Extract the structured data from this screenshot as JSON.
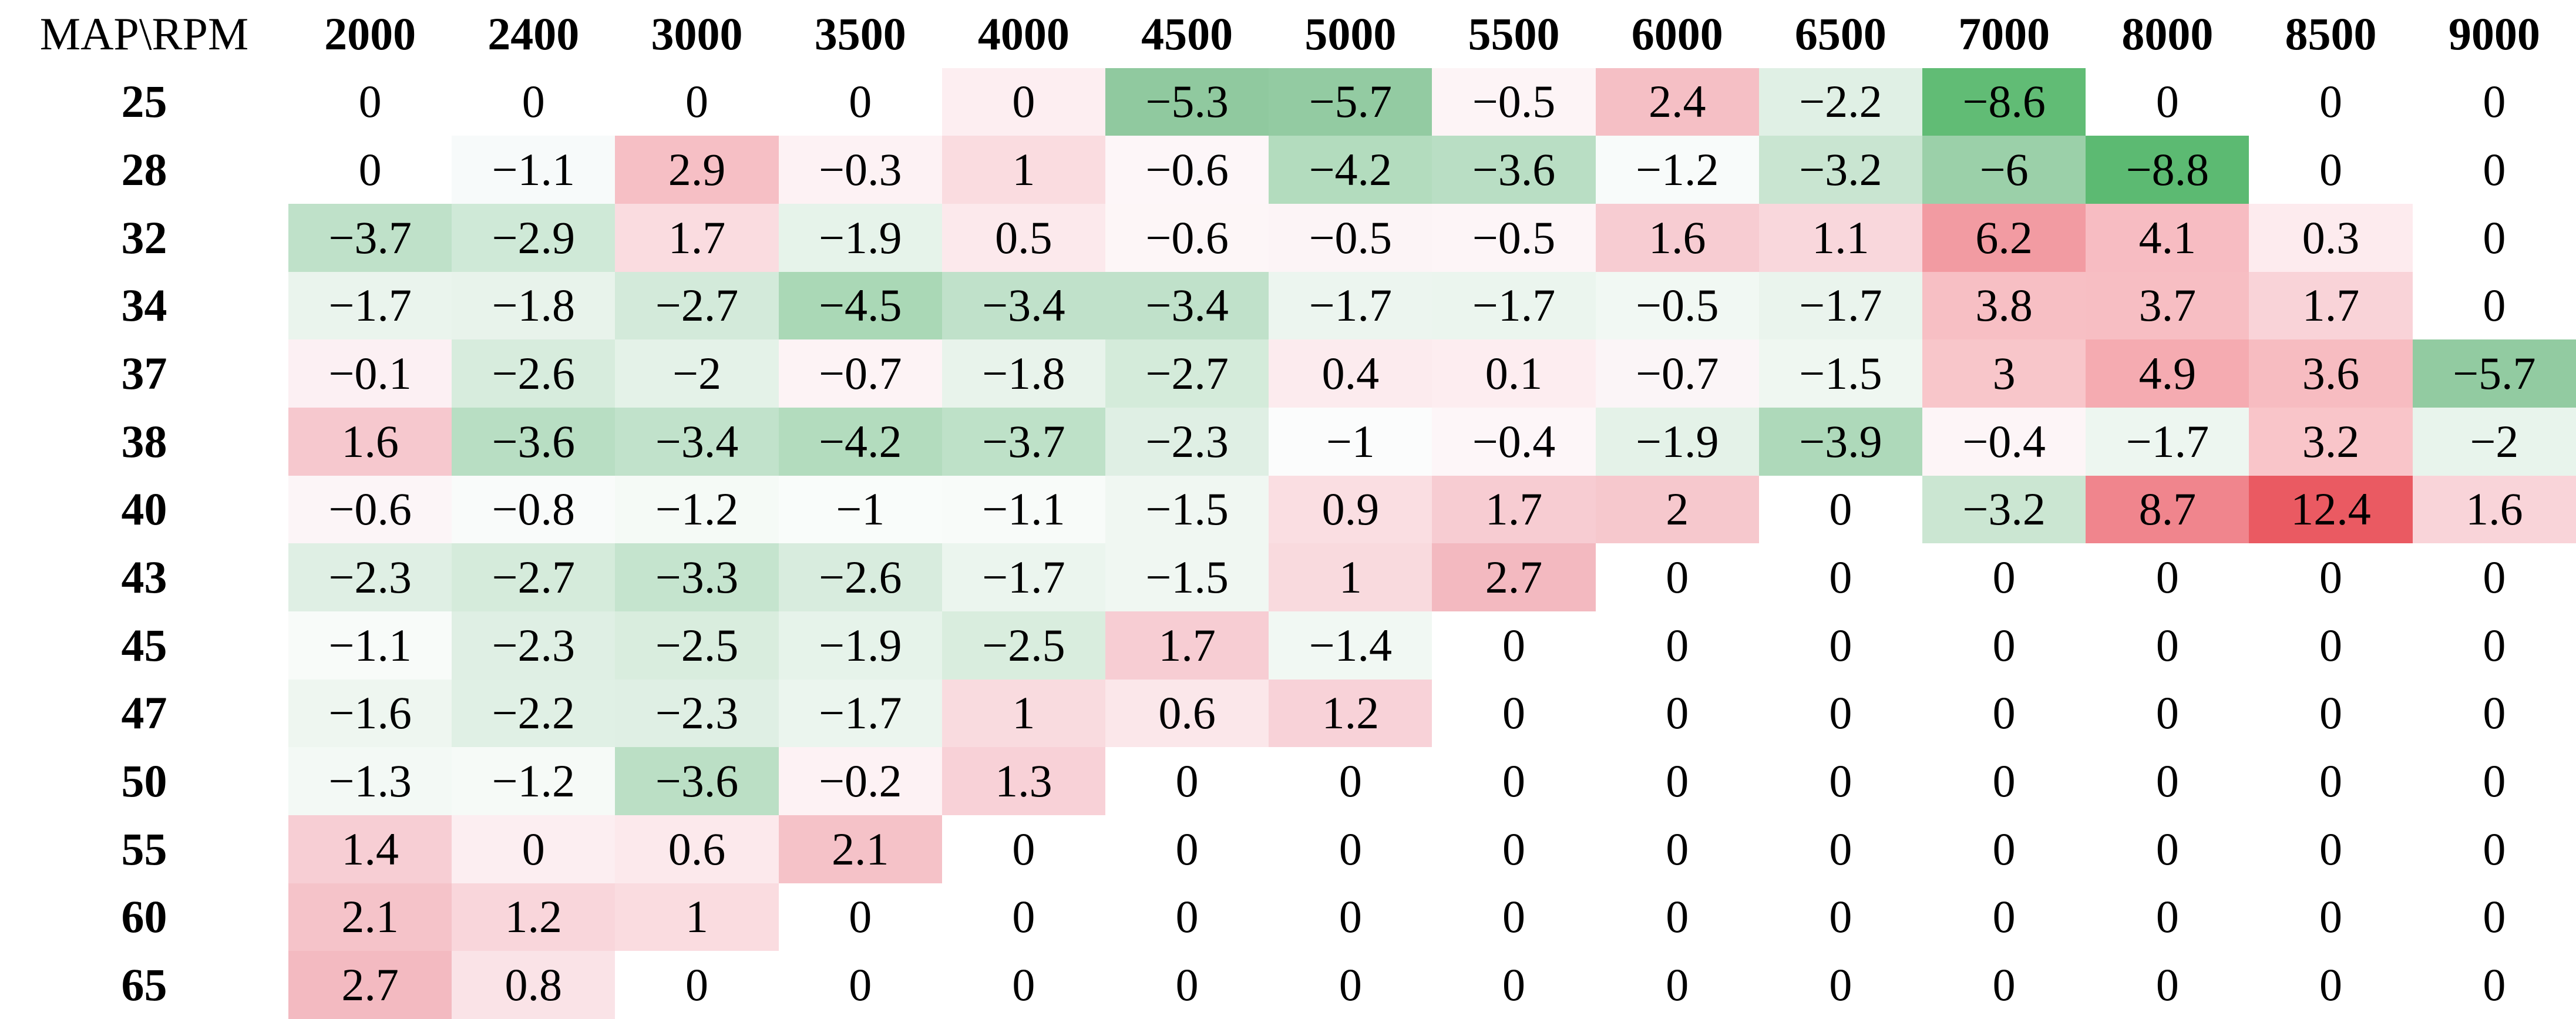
{
  "chart_data": {
    "type": "heatmap",
    "title": "",
    "corner_label": "MAP\\RPM",
    "x_axis_name": "RPM",
    "y_axis_name": "MAP",
    "columns": [
      2000,
      2400,
      3000,
      3500,
      4000,
      4500,
      5000,
      5500,
      6000,
      6500,
      7000,
      8000,
      8500,
      9000
    ],
    "rows": [
      25,
      28,
      32,
      34,
      37,
      38,
      40,
      43,
      45,
      47,
      50,
      55,
      60,
      65
    ],
    "values": [
      [
        0,
        0,
        0,
        0,
        0,
        -5.3,
        -5.7,
        -0.5,
        2.4,
        -2.2,
        -8.6,
        0,
        0,
        0
      ],
      [
        0,
        -1.1,
        2.9,
        -0.3,
        1,
        -0.6,
        -4.2,
        -3.6,
        -1.2,
        -3.2,
        -6,
        -8.8,
        0,
        0
      ],
      [
        -3.7,
        -2.9,
        1.7,
        -1.9,
        0.5,
        -0.6,
        -0.5,
        -0.5,
        1.6,
        1.1,
        6.2,
        4.1,
        0.3,
        0
      ],
      [
        -1.7,
        -1.8,
        -2.7,
        -4.5,
        -3.4,
        -3.4,
        -1.7,
        -1.7,
        -0.5,
        -1.7,
        3.8,
        3.7,
        1.7,
        0
      ],
      [
        -0.1,
        -2.6,
        -2,
        -0.7,
        -1.8,
        -2.7,
        0.4,
        0.1,
        -0.7,
        -1.5,
        3,
        4.9,
        3.6,
        -5.7
      ],
      [
        1.6,
        -3.6,
        -3.4,
        -4.2,
        -3.7,
        -2.3,
        -1,
        -0.4,
        -1.9,
        -3.9,
        -0.4,
        -1.7,
        3.2,
        -2
      ],
      [
        -0.6,
        -0.8,
        -1.2,
        -1,
        -1.1,
        -1.5,
        0.9,
        1.7,
        2,
        0,
        -3.2,
        8.7,
        12.4,
        1.6
      ],
      [
        -2.3,
        -2.7,
        -3.3,
        -2.6,
        -1.7,
        -1.5,
        1,
        2.7,
        0,
        0,
        0,
        0,
        0,
        0
      ],
      [
        -1.1,
        -2.3,
        -2.5,
        -1.9,
        -2.5,
        1.7,
        -1.4,
        0,
        0,
        0,
        0,
        0,
        0,
        0
      ],
      [
        -1.6,
        -2.2,
        -2.3,
        -1.7,
        1,
        0.6,
        1.2,
        0,
        0,
        0,
        0,
        0,
        0,
        0
      ],
      [
        -1.3,
        -1.2,
        -3.6,
        -0.2,
        1.3,
        0,
        0,
        0,
        0,
        0,
        0,
        0,
        0,
        0
      ],
      [
        1.4,
        0,
        0.6,
        2.1,
        0,
        0,
        0,
        0,
        0,
        0,
        0,
        0,
        0,
        0
      ],
      [
        2.1,
        1.2,
        1,
        0,
        0,
        0,
        0,
        0,
        0,
        0,
        0,
        0,
        0,
        0
      ],
      [
        2.7,
        0.8,
        0,
        0,
        0,
        0,
        0,
        0,
        0,
        0,
        0,
        0,
        0,
        0
      ]
    ],
    "cell_colors": [
      [
        "#ffffff",
        "#ffffff",
        "#ffffff",
        "#ffffff",
        "#fdeef1",
        "#90c99f",
        "#93cba2",
        "#fdf4f6",
        "#f5bfc5",
        "#e0f0e5",
        "#61bc75",
        "#ffffff",
        "#ffffff",
        "#ffffff"
      ],
      [
        "#ffffff",
        "#f7fafa",
        "#f6bfc5",
        "#fdf2f4",
        "#fadce0",
        "#fdf6f8",
        "#b3dcbe",
        "#b9dec4",
        "#f8fbfa",
        "#c9e5d1",
        "#9bd0a9",
        "#5cba72",
        "#ffffff",
        "#ffffff"
      ],
      [
        "#bfe1c9",
        "#cfe9d7",
        "#fadce0",
        "#e6f3ea",
        "#fce9ec",
        "#fdf6f7",
        "#fcf4f6",
        "#fdf5f7",
        "#f7ccd2",
        "#f9d7dc",
        "#f29ba2",
        "#f7bcc2",
        "#fdebee",
        "#ffffff"
      ],
      [
        "#eaf4ed",
        "#e8f3eb",
        "#d3eada",
        "#aad8b6",
        "#c0e1ca",
        "#c0e1ca",
        "#ecf5ef",
        "#ebf5ee",
        "#f1f8f3",
        "#eaf4ed",
        "#f7bfc4",
        "#f7bec3",
        "#f9d3d8",
        "#ffffff"
      ],
      [
        "#fcf0f3",
        "#d7ecdd",
        "#e4f2e8",
        "#fdf3f5",
        "#e8f3eb",
        "#d4ebda",
        "#fcebee",
        "#fdedf0",
        "#fbf5f7",
        "#eff7f1",
        "#f8c6ca",
        "#f5abb1",
        "#f7bcc1",
        "#92cba1"
      ],
      [
        "#f6c8ce",
        "#b8dec3",
        "#c1e2cb",
        "#b3dcbe",
        "#bee1c8",
        "#dfefe4",
        "#fbfcfc",
        "#fdf6f8",
        "#e4f2e8",
        "#aed9ba",
        "#fdf5f7",
        "#edf6f0",
        "#f9c5c9",
        "#e8f4ec"
      ],
      [
        "#fcf5f7",
        "#f9fbfa",
        "#f5faf6",
        "#f9fcfa",
        "#f8fbf9",
        "#f0f7f2",
        "#fadee2",
        "#f7ccd2",
        "#f6c8cd",
        "#ffffff",
        "#cbe6d2",
        "#f0858d",
        "#ea5a62",
        "#f9d4d9"
      ],
      [
        "#dfefe4",
        "#d5ebdb",
        "#c5e4ce",
        "#d8ecde",
        "#ebf5ee",
        "#f0f7f2",
        "#f9dade",
        "#f3b9c0",
        "#ffffff",
        "#ffffff",
        "#ffffff",
        "#ffffff",
        "#ffffff",
        "#ffffff"
      ],
      [
        "#f8fbf9",
        "#dfefe4",
        "#d9edde",
        "#e6f3ea",
        "#d9edde",
        "#f7cdd3",
        "#f1f8f3",
        "#ffffff",
        "#ffffff",
        "#ffffff",
        "#ffffff",
        "#ffffff",
        "#ffffff",
        "#ffffff"
      ],
      [
        "#eef6f0",
        "#e0f0e5",
        "#dfefe4",
        "#ebf5ee",
        "#f9dbdf",
        "#fbe7ea",
        "#f8d2d8",
        "#ffffff",
        "#ffffff",
        "#ffffff",
        "#ffffff",
        "#ffffff",
        "#ffffff",
        "#ffffff"
      ],
      [
        "#f3f9f5",
        "#f6faf7",
        "#bbdfc5",
        "#fdf2f4",
        "#f8d1d7",
        "#ffffff",
        "#ffffff",
        "#ffffff",
        "#ffffff",
        "#ffffff",
        "#ffffff",
        "#ffffff",
        "#ffffff",
        "#ffffff"
      ],
      [
        "#f7ced4",
        "#fceef1",
        "#fce9ec",
        "#f5c2c8",
        "#ffffff",
        "#ffffff",
        "#ffffff",
        "#ffffff",
        "#ffffff",
        "#ffffff",
        "#ffffff",
        "#ffffff",
        "#ffffff",
        "#ffffff"
      ],
      [
        "#f5c3c9",
        "#f9d6db",
        "#fadce0",
        "#ffffff",
        "#ffffff",
        "#ffffff",
        "#ffffff",
        "#ffffff",
        "#ffffff",
        "#ffffff",
        "#ffffff",
        "#ffffff",
        "#ffffff",
        "#ffffff"
      ],
      [
        "#f3bac1",
        "#fae3e7",
        "#ffffff",
        "#ffffff",
        "#ffffff",
        "#ffffff",
        "#ffffff",
        "#ffffff",
        "#ffffff",
        "#ffffff",
        "#ffffff",
        "#ffffff",
        "#ffffff",
        "#ffffff"
      ]
    ],
    "legend_position": "none",
    "grid": false,
    "colormap": {
      "negative_strong": "#5cba72",
      "positive_strong": "#ea5a62",
      "zero": "#ffffff",
      "negative_max_abs": 8.8,
      "positive_max": 12.4
    },
    "minus_glyph": "−"
  }
}
